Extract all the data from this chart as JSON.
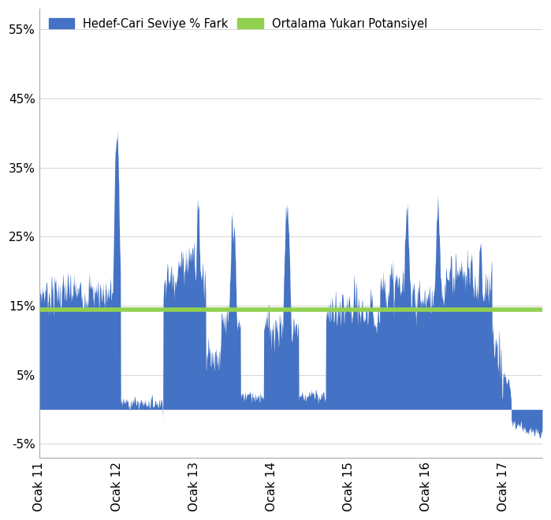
{
  "bar_color": "#4472C4",
  "line_color": "#92D050",
  "average_line_value": 0.145,
  "ylim": [
    -0.07,
    0.58
  ],
  "yticks": [
    -0.05,
    0.05,
    0.15,
    0.25,
    0.35,
    0.45,
    0.55
  ],
  "ytick_labels": [
    "-5%",
    "5%",
    "15%",
    "25%",
    "35%",
    "45%",
    "55%"
  ],
  "xtick_labels": [
    "Ocak 11",
    "Ocak 12",
    "Ocak 13",
    "Ocak 14",
    "Ocak 15",
    "Ocak 16",
    "Ocak 17"
  ],
  "legend_bar_label": "Hedef-Cari Seviye % Fark",
  "legend_line_label": "Ortalama Yukarı Potansiyel",
  "background_color": "#FFFFFF",
  "n_points": 1565,
  "seed": 7
}
